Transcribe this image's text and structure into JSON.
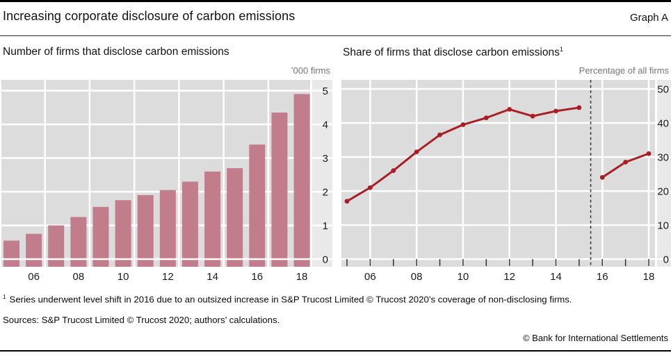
{
  "header": {
    "title": "Increasing corporate disclosure of carbon emissions",
    "graph_label": "Graph A"
  },
  "colors": {
    "bar": "#c27d8d",
    "line": "#a81e24",
    "plot_bg": "#dcdcdc",
    "strip_bg": "#e9e9e9",
    "grid": "#ffffff",
    "axis_text": "#1a1a1a",
    "unit_text": "#757575",
    "tick_mark": "#333333",
    "dashed_line": "#333333"
  },
  "chart_data": [
    {
      "type": "bar",
      "title": "Number of firms that disclose carbon emissions",
      "unit": "’000 firms",
      "years": [
        2005,
        2006,
        2007,
        2008,
        2009,
        2010,
        2011,
        2012,
        2013,
        2014,
        2015,
        2016,
        2017,
        2018
      ],
      "values": [
        0.55,
        0.75,
        1.0,
        1.25,
        1.55,
        1.75,
        1.9,
        2.05,
        2.3,
        2.6,
        2.7,
        3.4,
        4.35,
        4.9
      ],
      "x_tick_labels": [
        "06",
        "08",
        "10",
        "12",
        "14",
        "16",
        "18"
      ],
      "ylim": [
        0,
        5
      ],
      "y_ticks": [
        0,
        1,
        2,
        3,
        4,
        5
      ],
      "ylabel_side": "right",
      "grid": "on"
    },
    {
      "type": "line",
      "title": "Share of firms that disclose carbon emissions",
      "title_sup": "1",
      "unit": "Percentage of all firms",
      "years": [
        2005,
        2006,
        2007,
        2008,
        2009,
        2010,
        2011,
        2012,
        2013,
        2014,
        2015,
        2016,
        2017,
        2018
      ],
      "segments": [
        {
          "years": [
            2005,
            2006,
            2007,
            2008,
            2009,
            2010,
            2011,
            2012,
            2013,
            2014,
            2015
          ],
          "values": [
            17,
            21,
            26,
            31.5,
            36.5,
            39.5,
            41.5,
            44,
            42,
            43.5,
            44.5
          ]
        },
        {
          "years": [
            2016,
            2017,
            2018
          ],
          "values": [
            24,
            28.5,
            31
          ]
        }
      ],
      "series_break_after_year": 2015,
      "x_tick_labels": [
        "06",
        "08",
        "10",
        "12",
        "14",
        "16",
        "18"
      ],
      "ylim": [
        0,
        50
      ],
      "y_ticks": [
        0,
        10,
        20,
        30,
        40,
        50
      ],
      "ylabel_side": "right",
      "grid": "on"
    }
  ],
  "footnote": {
    "marker": "1",
    "text": "Series underwent level shift in 2016 due to an outsized increase in S&P Trucost Limited © Trucost 2020’s coverage of non-disclosing firms."
  },
  "sources": "Sources: S&P Trucost Limited © Trucost 2020; authors’ calculations.",
  "copyright": "© Bank for International Settlements"
}
